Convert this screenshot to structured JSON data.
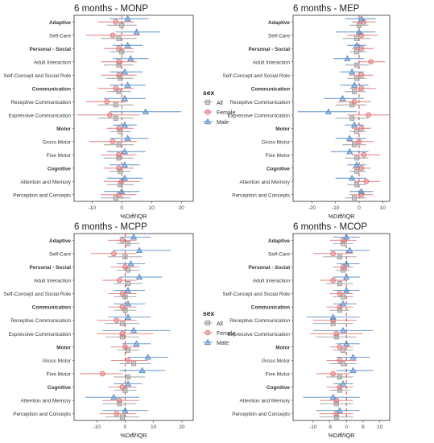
{
  "figure": {
    "legend": {
      "title": "sex",
      "entries": [
        {
          "label": "All",
          "color": "#9e9e9e",
          "marker": "square"
        },
        {
          "label": "Female",
          "color": "#e07b7b",
          "marker": "circle"
        },
        {
          "label": "Male",
          "color": "#5b8fc7",
          "marker": "triangle"
        }
      ]
    }
  },
  "chart_data": [
    {
      "type": "scatter",
      "title": "6 months - MONP",
      "xlabel": "%Diff/IQR",
      "ylabel": "",
      "xlim": [
        -16,
        24
      ],
      "xticks": [
        -10,
        0,
        10,
        20
      ],
      "reference_line": 0,
      "categories": [
        "Adaptive",
        "Self-Care",
        "Personal - Social",
        "Adult Interaction",
        "Self-Concept and Social Role",
        "Communication",
        "Receptive Communication",
        "Expressive Communication",
        "Motor",
        "Gross Motor",
        "Fine Motor",
        "Cognitive",
        "Attention and Memory",
        "Perception and Concepts"
      ],
      "bold_categories": [
        "Adaptive",
        "Personal - Social",
        "Communication",
        "Motor",
        "Cognitive"
      ],
      "series": [
        {
          "name": "All",
          "estimate": [
            0,
            -1,
            0,
            -1,
            -0.5,
            -1,
            -2,
            -2,
            -0.5,
            -1,
            -1,
            -0.5,
            -0.5,
            -2
          ],
          "lower": [
            -5,
            -7,
            -4,
            -6,
            -5,
            -5,
            -8,
            -8,
            -4,
            -6,
            -6,
            -4,
            -5,
            -7
          ],
          "upper": [
            5,
            5,
            4,
            4,
            4,
            3,
            4,
            4,
            3,
            4,
            4,
            3,
            4,
            3
          ]
        },
        {
          "name": "Female",
          "estimate": [
            -2,
            -3,
            -1,
            -1,
            -1,
            -2,
            -5,
            -4,
            -1,
            -3,
            -1,
            -1,
            0,
            -1
          ],
          "lower": [
            -8,
            -12,
            -6,
            -7,
            -7,
            -8,
            -12,
            -15,
            -5,
            -11,
            -7,
            -6,
            -6,
            -7
          ],
          "upper": [
            4,
            6,
            4,
            5,
            5,
            4,
            2,
            6,
            4,
            5,
            5,
            4,
            6,
            5
          ]
        },
        {
          "name": "Male",
          "estimate": [
            2,
            5,
            2,
            3,
            1,
            2,
            1,
            8,
            1,
            2,
            1,
            1,
            1,
            0
          ],
          "lower": [
            -4,
            -2,
            -3,
            -3,
            -4,
            -4,
            -6,
            -4,
            -3,
            -4,
            -5,
            -4,
            -5,
            -6
          ],
          "upper": [
            9,
            13,
            7,
            9,
            7,
            8,
            8,
            20,
            5,
            9,
            8,
            6,
            7,
            6
          ]
        }
      ]
    },
    {
      "type": "scatter",
      "title": "6 months - MEP",
      "xlabel": "%Diff/IQR",
      "ylabel": "",
      "xlim": [
        -28,
        13
      ],
      "xticks": [
        -20,
        -10,
        0,
        10
      ],
      "reference_line": 0,
      "categories": [
        "Adaptive",
        "Self-Care",
        "Personal - Social",
        "Adult Interaction",
        "Self-Concept and Social Role",
        "Communication",
        "Receptive Communication",
        "Expressive Communication",
        "Motor",
        "Gross Motor",
        "Fine Motor",
        "Cognitive",
        "Attention and Memory",
        "Perception and Concepts"
      ],
      "bold_categories": [
        "Adaptive",
        "Personal - Social",
        "Communication",
        "Motor",
        "Cognitive"
      ],
      "series": [
        {
          "name": "All",
          "estimate": [
            0,
            -1,
            -1,
            -1,
            -1,
            -2,
            -3,
            -3,
            -1,
            -2,
            -1,
            -1,
            -1,
            -2
          ],
          "lower": [
            -4,
            -7,
            -4,
            -6,
            -5,
            -6,
            -10,
            -10,
            -4,
            -7,
            -6,
            -4,
            -5,
            -6
          ],
          "upper": [
            4,
            5,
            3,
            4,
            3,
            3,
            3,
            4,
            3,
            3,
            4,
            3,
            3,
            3
          ]
        },
        {
          "name": "Female",
          "estimate": [
            2,
            1,
            1,
            5,
            1,
            1,
            -2,
            4,
            1,
            0,
            2,
            1,
            3,
            1
          ],
          "lower": [
            -3,
            -5,
            -3,
            0,
            -4,
            -4,
            -9,
            -5,
            -3,
            -5,
            -3,
            -3,
            -2,
            -4
          ],
          "upper": [
            7,
            8,
            6,
            11,
            6,
            7,
            5,
            13,
            5,
            6,
            9,
            5,
            9,
            6
          ]
        },
        {
          "name": "Male",
          "estimate": [
            1,
            0,
            -1,
            -5,
            -3,
            -2,
            -7,
            -13,
            -2,
            -4,
            -4,
            -1,
            -3,
            1
          ],
          "lower": [
            -6,
            -10,
            -5,
            -11,
            -8,
            -8,
            -15,
            -26,
            -6,
            -10,
            -12,
            -5,
            -10,
            -4
          ],
          "upper": [
            7,
            7,
            3,
            2,
            2,
            4,
            2,
            -1,
            2,
            3,
            4,
            3,
            3,
            6
          ]
        }
      ]
    },
    {
      "type": "scatter",
      "title": "6 months - MCPP",
      "xlabel": "%Diff/IQR",
      "ylabel": "",
      "xlim": [
        -18,
        24
      ],
      "xticks": [
        -10,
        0,
        10,
        20
      ],
      "reference_line": 0,
      "categories": [
        "Adaptive",
        "Self-Care",
        "Personal - Social",
        "Adult Interaction",
        "Self-Concept and Social Role",
        "Communication",
        "Receptive Communication",
        "Expressive Communication",
        "Motor",
        "Gross Motor",
        "Fine Motor",
        "Cognitive",
        "Attention and Memory",
        "Perception and Concepts"
      ],
      "bold_categories": [
        "Adaptive",
        "Personal - Social",
        "Communication",
        "Motor",
        "Cognitive"
      ],
      "series": [
        {
          "name": "All",
          "estimate": [
            1,
            0,
            1,
            1,
            0,
            0,
            -1,
            -1,
            1,
            3,
            1,
            0,
            -2,
            -1
          ],
          "lower": [
            -3,
            -6,
            -3,
            -4,
            -4,
            -4,
            -7,
            -7,
            -3,
            -2,
            -4,
            -4,
            -8,
            -7
          ],
          "upper": [
            5,
            6,
            5,
            6,
            4,
            4,
            5,
            5,
            5,
            9,
            7,
            4,
            4,
            5
          ]
        },
        {
          "name": "Female",
          "estimate": [
            -1,
            -4,
            0,
            -2,
            -1,
            -1,
            -3,
            -1,
            0,
            1,
            -8,
            -1,
            -2,
            -3
          ],
          "lower": [
            -6,
            -12,
            -5,
            -8,
            -6,
            -6,
            -10,
            -10,
            -5,
            -5,
            -16,
            -6,
            -8,
            -9
          ],
          "upper": [
            4,
            4,
            5,
            4,
            4,
            4,
            4,
            10,
            5,
            8,
            -1,
            4,
            5,
            4
          ]
        },
        {
          "name": "Male",
          "estimate": [
            3,
            5,
            2,
            5,
            1,
            1,
            1,
            3,
            4,
            8,
            6,
            1,
            -4,
            0
          ],
          "lower": [
            -2,
            -4,
            -3,
            -2,
            -4,
            -4,
            -6,
            -8,
            -1,
            1,
            -2,
            -4,
            -14,
            -8
          ],
          "upper": [
            9,
            16,
            7,
            13,
            7,
            7,
            9,
            16,
            9,
            15,
            14,
            6,
            5,
            8
          ]
        }
      ]
    },
    {
      "type": "scatter",
      "title": "6 months - MCOP",
      "xlabel": "%Diff/IQR",
      "ylabel": "",
      "xlim": [
        -16,
        13
      ],
      "xticks": [
        -10,
        -5,
        0,
        5,
        10
      ],
      "reference_line": 0,
      "categories": [
        "Adaptive",
        "Self-Care",
        "Personal - Social",
        "Adult Interaction",
        "Self-Concept and Social Role",
        "Communication",
        "Receptive Communication",
        "Expressive Communication",
        "Motor",
        "Gross Motor",
        "Fine Motor",
        "Cognitive",
        "Attention and Memory",
        "Perception and Concepts"
      ],
      "bold_categories": [
        "Adaptive",
        "Personal - Social",
        "Communication",
        "Motor",
        "Cognitive"
      ],
      "series": [
        {
          "name": "All",
          "estimate": [
            -1,
            -2,
            -1,
            -2,
            -1,
            -2,
            -4,
            -3,
            -1,
            -1,
            -2,
            -2,
            -3,
            -3
          ],
          "lower": [
            -4,
            -7,
            -3,
            -6,
            -4,
            -5,
            -10,
            -9,
            -4,
            -5,
            -6,
            -5,
            -8,
            -8
          ],
          "upper": [
            2,
            3,
            1,
            2,
            2,
            1,
            2,
            3,
            2,
            3,
            2,
            1,
            2,
            2
          ]
        },
        {
          "name": "Female",
          "estimate": [
            -1,
            -4,
            -1,
            -4,
            -2,
            -2,
            -4,
            -3,
            -2,
            -2,
            -4,
            -2,
            -3,
            -3
          ],
          "lower": [
            -5,
            -10,
            -4,
            -8,
            -5,
            -6,
            -10,
            -11,
            -5,
            -6,
            -9,
            -6,
            -8,
            -8
          ],
          "upper": [
            3,
            2,
            2,
            0,
            2,
            2,
            3,
            5,
            2,
            3,
            1,
            2,
            2,
            2
          ]
        },
        {
          "name": "Male",
          "estimate": [
            0,
            1,
            0,
            0,
            0,
            -1,
            -4,
            -1,
            0,
            2,
            2,
            -1,
            -4,
            -2
          ],
          "lower": [
            -4,
            -5,
            -3,
            -4,
            -4,
            -4,
            -12,
            -10,
            -3,
            -3,
            -3,
            -4,
            -13,
            -9
          ],
          "upper": [
            4,
            7,
            4,
            4,
            4,
            3,
            4,
            8,
            4,
            7,
            8,
            2,
            4,
            4
          ]
        }
      ]
    }
  ]
}
